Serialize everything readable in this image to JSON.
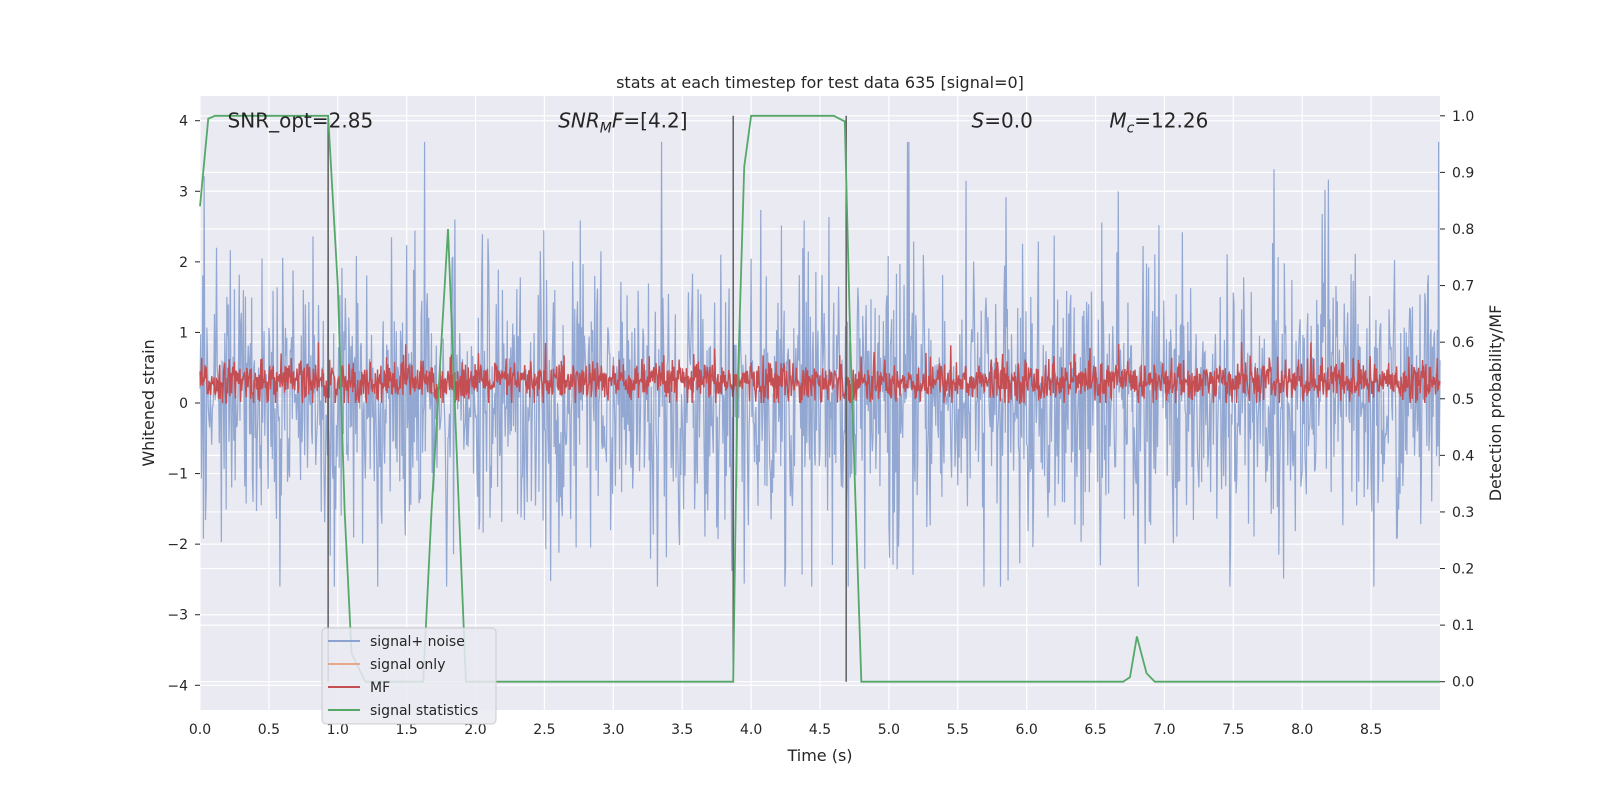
{
  "chart_data": {
    "type": "line",
    "title": "stats at each timestep for test data 635 [signal=0]",
    "xlabel": "Time (s)",
    "ylabel": "Whitened strain",
    "ylabel_right": "Detection probability/MF",
    "xlim": [
      0.0,
      9.0
    ],
    "ylim": [
      -4.35,
      4.35
    ],
    "ylim_right": [
      -0.05,
      1.035
    ],
    "x_ticks": [
      "0.0",
      "0.5",
      "1.0",
      "1.5",
      "2.0",
      "2.5",
      "3.0",
      "3.5",
      "4.0",
      "4.5",
      "5.0",
      "5.5",
      "6.0",
      "6.5",
      "7.0",
      "7.5",
      "8.0",
      "8.5"
    ],
    "x_tick_values": [
      0.0,
      0.5,
      1.0,
      1.5,
      2.0,
      2.5,
      3.0,
      3.5,
      4.0,
      4.5,
      5.0,
      5.5,
      6.0,
      6.5,
      7.0,
      7.5,
      8.0,
      8.5
    ],
    "y_ticks": [
      "−4",
      "−3",
      "−2",
      "−1",
      "0",
      "1",
      "2",
      "3",
      "4"
    ],
    "y_tick_values": [
      -4,
      -3,
      -2,
      -1,
      0,
      1,
      2,
      3,
      4
    ],
    "y_ticks_right": [
      "0.0",
      "0.1",
      "0.2",
      "0.3",
      "0.4",
      "0.5",
      "0.6",
      "0.7",
      "0.8",
      "0.9",
      "1.0"
    ],
    "y_tick_values_right": [
      0.0,
      0.1,
      0.2,
      0.3,
      0.4,
      0.5,
      0.6,
      0.7,
      0.8,
      0.9,
      1.0
    ],
    "grid": true,
    "legend_position": "lower-left",
    "annotations": [
      {
        "text": "SNR_opt=2.85",
        "x": 0.2,
        "y": 4.0
      },
      {
        "text": "SNR_MF=[4.2]",
        "x": 2.6,
        "y": 4.0
      },
      {
        "text": "S=0.0",
        "x": 5.6,
        "y": 4.0
      },
      {
        "text": "M_c=12.26",
        "x": 6.6,
        "y": 4.0
      }
    ],
    "annotation_parts": [
      [
        {
          "t": "SNR_opt=2.85",
          "i": false
        }
      ],
      [
        {
          "t": "SNR",
          "i": true
        },
        {
          "t": "M",
          "i": true,
          "sub": true
        },
        {
          "t": "F",
          "i": true
        },
        {
          "t": "=[4.2]",
          "i": false
        }
      ],
      [
        {
          "t": "S",
          "i": true
        },
        {
          "t": "=0.0",
          "i": false
        }
      ],
      [
        {
          "t": "M",
          "i": true
        },
        {
          "t": "c",
          "i": true,
          "sub": true
        },
        {
          "t": "=12.26",
          "i": false
        }
      ]
    ],
    "series": [
      {
        "name": "signal+ noise",
        "color": "#8da3cf",
        "axis": "left",
        "style": "noise",
        "amplitude_range": [
          -2.6,
          3.7
        ]
      },
      {
        "name": "signal only",
        "color": "#e8a68a",
        "axis": "left",
        "style": "flat"
      },
      {
        "name": "MF",
        "color": "#c44e52",
        "axis": "left",
        "style": "noise",
        "amplitude_range": [
          0.0,
          1.0
        ]
      },
      {
        "name": "signal statistics",
        "color": "#55a868",
        "axis": "right",
        "style": "line",
        "x": [
          0.0,
          0.06,
          0.11,
          0.3,
          0.6,
          0.93,
          1.0,
          1.05,
          1.1,
          1.2,
          1.3,
          1.5,
          1.62,
          1.68,
          1.8,
          1.88,
          1.93,
          2.0,
          2.5,
          3.0,
          3.5,
          3.87,
          3.9,
          3.95,
          4.0,
          4.3,
          4.6,
          4.68,
          4.72,
          4.8,
          5.0,
          5.5,
          6.0,
          6.5,
          6.7,
          6.75,
          6.8,
          6.87,
          6.93,
          7.0,
          7.5,
          8.0,
          8.5,
          9.0
        ],
        "y": [
          0.84,
          0.995,
          1.0,
          1.0,
          1.0,
          1.0,
          0.7,
          0.3,
          0.05,
          0.0,
          0.0,
          0.0,
          0.0,
          0.3,
          0.8,
          0.3,
          0.0,
          0.0,
          0.0,
          0.0,
          0.0,
          0.0,
          0.5,
          0.91,
          1.0,
          1.0,
          1.0,
          0.99,
          0.6,
          0.0,
          0.0,
          0.0,
          0.0,
          0.0,
          0.0,
          0.008,
          0.08,
          0.015,
          0.0,
          0.0,
          0.0,
          0.0,
          0.0,
          0.0
        ]
      }
    ],
    "vertical_markers": [
      0.93,
      3.87,
      4.69
    ]
  }
}
